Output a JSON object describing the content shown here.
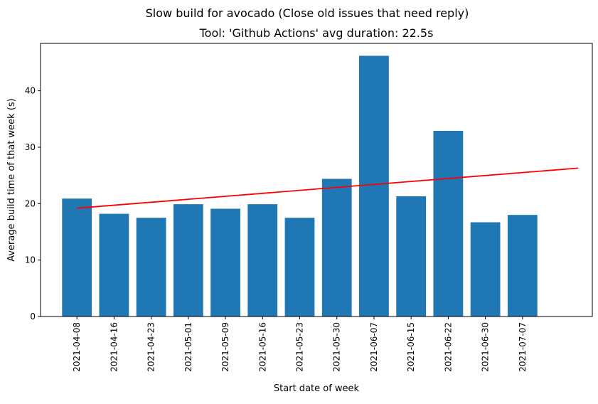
{
  "chart_data": {
    "type": "bar",
    "suptitle": "Slow build for avocado (Close old issues that need reply)",
    "title": "Tool: 'Github Actions' avg duration: 22.5s",
    "xlabel": "Start date of week",
    "ylabel": "Average build time of that week (s)",
    "categories": [
      "2021-04-08",
      "2021-04-16",
      "2021-04-23",
      "2021-05-01",
      "2021-05-09",
      "2021-05-16",
      "2021-05-23",
      "2021-05-30",
      "2021-06-07",
      "2021-06-15",
      "2021-06-22",
      "2021-06-30",
      "2021-07-07"
    ],
    "values": [
      20.9,
      18.2,
      17.5,
      19.9,
      19.1,
      19.9,
      17.5,
      24.4,
      46.2,
      21.3,
      32.9,
      16.7,
      18.0
    ],
    "ylim": [
      0,
      48.4
    ],
    "yticks": [
      0,
      10,
      20,
      30,
      40
    ],
    "grid": false,
    "trend_line": {
      "color": "#ff0000",
      "x_range_categories": [
        0,
        13.5
      ],
      "y_start": 19.2,
      "y_end": 26.3
    },
    "colors": {
      "bar": "#1f77b4",
      "trend": "#ff0000"
    }
  }
}
